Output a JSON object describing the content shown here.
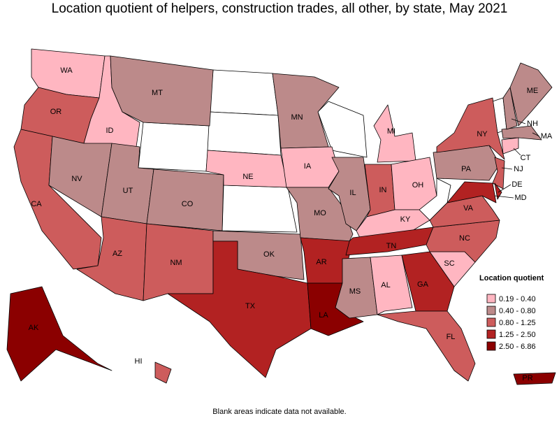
{
  "title": "Location quotient of helpers, construction trades, all other, by state, May 2021",
  "footnote": "Blank areas indicate data not available.",
  "legend": {
    "title": "Location quotient",
    "items": [
      {
        "label": "0.19 - 0.40",
        "color": "#ffb6c1"
      },
      {
        "label": "0.40 - 0.80",
        "color": "#bc8a8a"
      },
      {
        "label": "0.80 - 1.25",
        "color": "#cd5c5c"
      },
      {
        "label": "1.25 - 2.50",
        "color": "#b22222"
      },
      {
        "label": "2.50 - 6.86",
        "color": "#8b0000"
      }
    ]
  },
  "states": [
    {
      "label": "WA",
      "bin": 0
    },
    {
      "label": "OR",
      "bin": 2
    },
    {
      "label": "CA",
      "bin": 2
    },
    {
      "label": "ID",
      "bin": 0
    },
    {
      "label": "NV",
      "bin": 1
    },
    {
      "label": "UT",
      "bin": 1
    },
    {
      "label": "AZ",
      "bin": 2
    },
    {
      "label": "MT",
      "bin": 1
    },
    {
      "label": "CO",
      "bin": 1
    },
    {
      "label": "NM",
      "bin": 2
    },
    {
      "label": "NE",
      "bin": 0
    },
    {
      "label": "OK",
      "bin": 1
    },
    {
      "label": "TX",
      "bin": 3
    },
    {
      "label": "MN",
      "bin": 1
    },
    {
      "label": "IA",
      "bin": 0
    },
    {
      "label": "MO",
      "bin": 1
    },
    {
      "label": "AR",
      "bin": 3
    },
    {
      "label": "LA",
      "bin": 4
    },
    {
      "label": "IL",
      "bin": 1
    },
    {
      "label": "MI",
      "bin": 0
    },
    {
      "label": "IN",
      "bin": 2
    },
    {
      "label": "OH",
      "bin": 0
    },
    {
      "label": "KY",
      "bin": 0
    },
    {
      "label": "TN",
      "bin": 3
    },
    {
      "label": "MS",
      "bin": 1
    },
    {
      "label": "AL",
      "bin": 0
    },
    {
      "label": "GA",
      "bin": 3
    },
    {
      "label": "FL",
      "bin": 2
    },
    {
      "label": "SC",
      "bin": 0
    },
    {
      "label": "NC",
      "bin": 2
    },
    {
      "label": "VA",
      "bin": 2
    },
    {
      "label": "PA",
      "bin": 1
    },
    {
      "label": "NY",
      "bin": 2
    },
    {
      "label": "NJ",
      "bin": 2
    },
    {
      "label": "DE",
      "bin": 3
    },
    {
      "label": "MD",
      "bin": 3
    },
    {
      "label": "CT",
      "bin": 0
    },
    {
      "label": "MA",
      "bin": 1
    },
    {
      "label": "NH",
      "bin": 1
    },
    {
      "label": "ME",
      "bin": 1
    },
    {
      "label": "AK",
      "bin": 4
    },
    {
      "label": "HI",
      "bin": 2
    },
    {
      "label": "PR",
      "bin": 4
    }
  ]
}
